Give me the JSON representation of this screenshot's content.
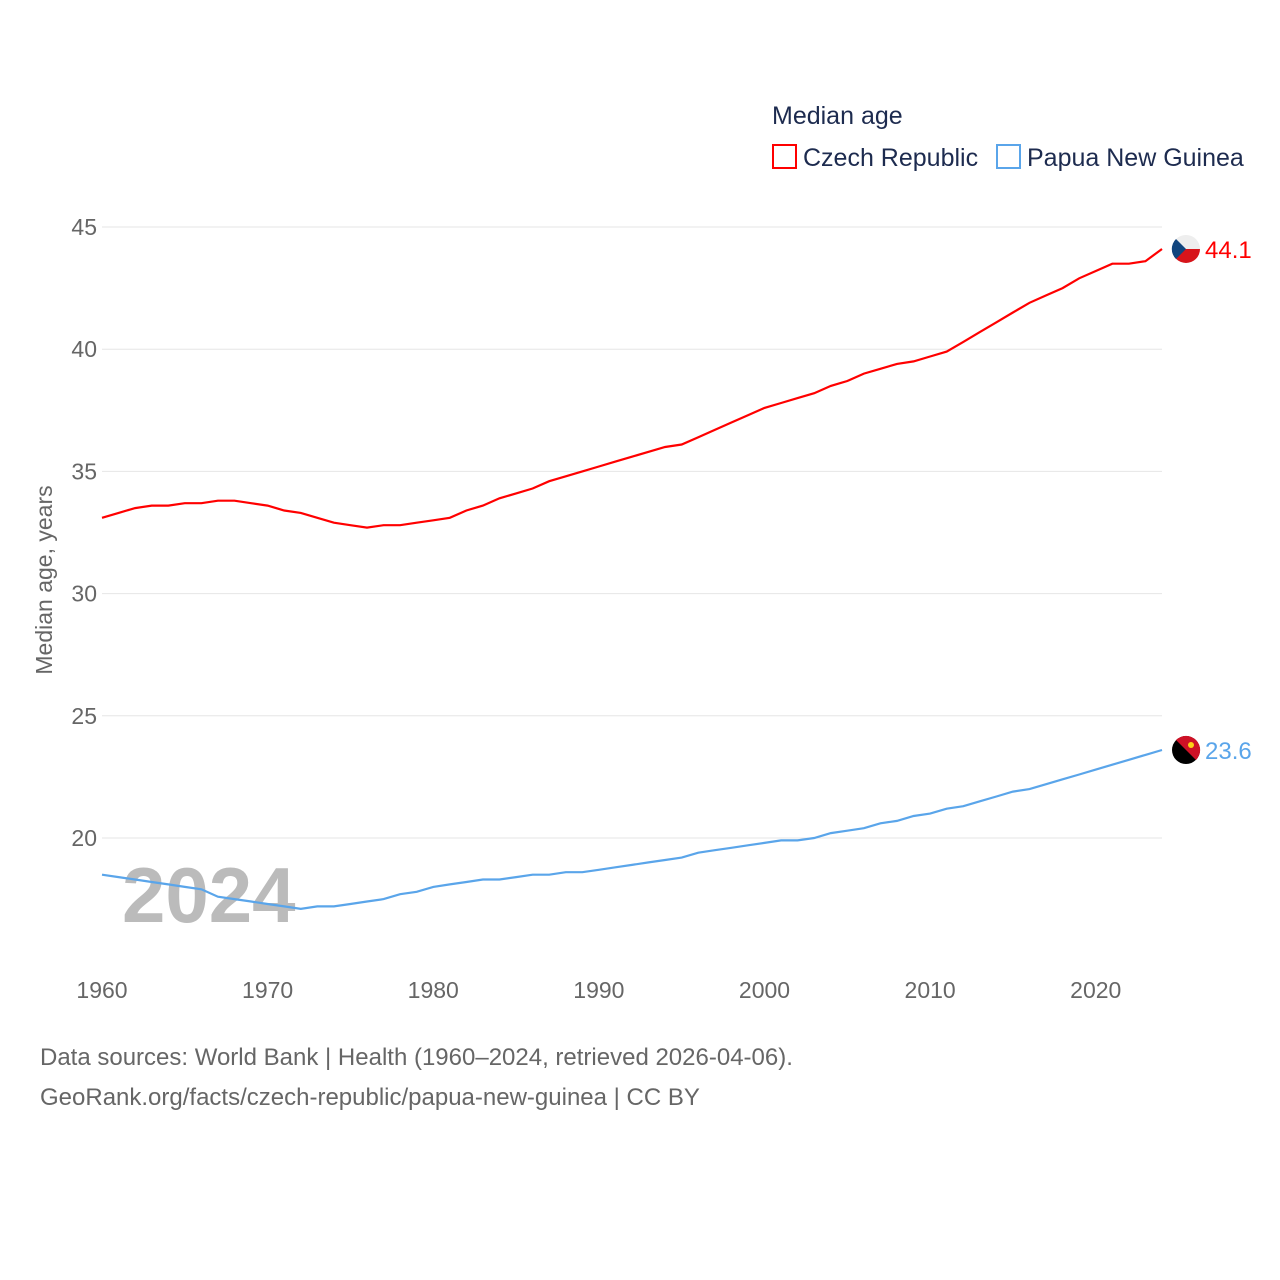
{
  "chart_data": {
    "type": "line",
    "legend_title": "Median age",
    "ylabel": "Median age, years",
    "ylim": [
      15.5,
      45
    ],
    "xlim": [
      1960,
      2024
    ],
    "yticks": [
      "20",
      "25",
      "30",
      "35",
      "40",
      "45"
    ],
    "xticks": [
      "1960",
      "1970",
      "1980",
      "1990",
      "2000",
      "2010",
      "2020"
    ],
    "watermark_year": "2024",
    "x": [
      1960,
      1961,
      1962,
      1963,
      1964,
      1965,
      1966,
      1967,
      1968,
      1969,
      1970,
      1971,
      1972,
      1973,
      1974,
      1975,
      1976,
      1977,
      1978,
      1979,
      1980,
      1981,
      1982,
      1983,
      1984,
      1985,
      1986,
      1987,
      1988,
      1989,
      1990,
      1991,
      1992,
      1993,
      1994,
      1995,
      1996,
      1997,
      1998,
      1999,
      2000,
      2001,
      2002,
      2003,
      2004,
      2005,
      2006,
      2007,
      2008,
      2009,
      2010,
      2011,
      2012,
      2013,
      2014,
      2015,
      2016,
      2017,
      2018,
      2019,
      2020,
      2021,
      2022,
      2023,
      2024
    ],
    "series": [
      {
        "name": "Czech Republic",
        "color": "#ff0000",
        "end_label": "44.1",
        "values": [
          33.1,
          33.3,
          33.5,
          33.6,
          33.6,
          33.7,
          33.7,
          33.8,
          33.8,
          33.7,
          33.6,
          33.4,
          33.3,
          33.1,
          32.9,
          32.8,
          32.7,
          32.8,
          32.8,
          32.9,
          33.0,
          33.1,
          33.4,
          33.6,
          33.9,
          34.1,
          34.3,
          34.6,
          34.8,
          35.0,
          35.2,
          35.4,
          35.6,
          35.8,
          36.0,
          36.1,
          36.4,
          36.7,
          37.0,
          37.3,
          37.6,
          37.8,
          38.0,
          38.2,
          38.5,
          38.7,
          39.0,
          39.2,
          39.4,
          39.5,
          39.7,
          39.9,
          40.3,
          40.7,
          41.1,
          41.5,
          41.9,
          42.2,
          42.5,
          42.9,
          43.2,
          43.5,
          43.5,
          43.6,
          44.1
        ]
      },
      {
        "name": "Papua New Guinea",
        "color": "#5aa5ea",
        "end_label": "23.6",
        "values": [
          18.5,
          18.4,
          18.3,
          18.2,
          18.1,
          18.0,
          17.9,
          17.6,
          17.5,
          17.4,
          17.3,
          17.2,
          17.1,
          17.2,
          17.2,
          17.3,
          17.4,
          17.5,
          17.7,
          17.8,
          18.0,
          18.1,
          18.2,
          18.3,
          18.3,
          18.4,
          18.5,
          18.5,
          18.6,
          18.6,
          18.7,
          18.8,
          18.9,
          19.0,
          19.1,
          19.2,
          19.4,
          19.5,
          19.6,
          19.7,
          19.8,
          19.9,
          19.9,
          20.0,
          20.2,
          20.3,
          20.4,
          20.6,
          20.7,
          20.9,
          21.0,
          21.2,
          21.3,
          21.5,
          21.7,
          21.9,
          22.0,
          22.2,
          22.4,
          22.6,
          22.8,
          23.0,
          23.2,
          23.4,
          23.6
        ]
      }
    ]
  },
  "footer": {
    "line1": "Data sources: World Bank | Health (1960–2024, retrieved 2026-04-06).",
    "line2": "GeoRank.org/facts/czech-republic/papua-new-guinea | CC BY"
  }
}
